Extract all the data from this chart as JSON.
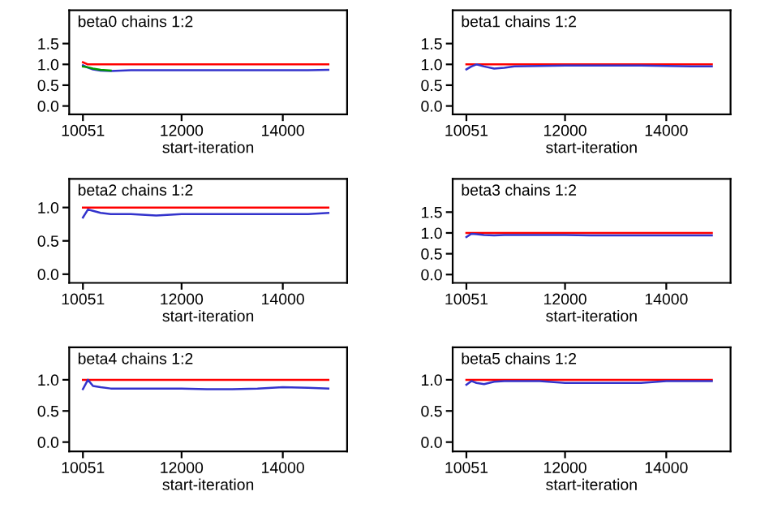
{
  "chart_data": [
    {
      "type": "line",
      "title": "beta0 chains 1:2",
      "xlabel": "start-iteration",
      "xlim": [
        9780,
        15270
      ],
      "xticks": [
        10051,
        12000,
        14000
      ],
      "ylim": [
        -0.2,
        2.3
      ],
      "yticks": [
        {
          "value": 0,
          "label": "0.0"
        },
        {
          "value": 0.5,
          "label": "0.5"
        },
        {
          "value": 1,
          "label": "1.0"
        },
        {
          "value": 1.5,
          "label": "1.5"
        }
      ],
      "grid": false,
      "x": [
        10051,
        10150,
        10250,
        10400,
        10600,
        10800,
        11000,
        11500,
        12000,
        12500,
        13000,
        13500,
        14000,
        14500,
        14900
      ],
      "series": [
        {
          "color": "#ff0000",
          "values": [
            1.05,
            1.0,
            1.0,
            1.0,
            1.0,
            1.0,
            1.0,
            1.0,
            1.0,
            1.0,
            1.0,
            1.0,
            1.0,
            1.0,
            1.0
          ]
        },
        {
          "color": "#3333cc",
          "values": [
            0.98,
            0.92,
            0.88,
            0.85,
            0.84,
            0.85,
            0.86,
            0.86,
            0.86,
            0.86,
            0.86,
            0.86,
            0.86,
            0.86,
            0.87
          ]
        },
        {
          "color": "#009900",
          "x": [
            10051,
            10150,
            10250,
            10400,
            10600
          ],
          "values": [
            0.95,
            0.93,
            0.9,
            0.87,
            0.85
          ]
        }
      ]
    },
    {
      "type": "line",
      "title": "beta1 chains 1:2",
      "xlabel": "start-iteration",
      "xlim": [
        9780,
        15270
      ],
      "xticks": [
        10051,
        12000,
        14000
      ],
      "ylim": [
        -0.2,
        2.3
      ],
      "yticks": [
        {
          "value": 0,
          "label": "0.0"
        },
        {
          "value": 0.5,
          "label": "0.5"
        },
        {
          "value": 1,
          "label": "1.0"
        },
        {
          "value": 1.5,
          "label": "1.5"
        }
      ],
      "grid": false,
      "x": [
        10051,
        10150,
        10250,
        10400,
        10600,
        10800,
        11000,
        11500,
        12000,
        12500,
        13000,
        13500,
        14000,
        14500,
        14900
      ],
      "series": [
        {
          "color": "#ff0000",
          "values": [
            1.0,
            1.0,
            1.0,
            1.0,
            1.0,
            1.0,
            1.0,
            1.0,
            1.0,
            1.0,
            1.0,
            1.0,
            1.0,
            1.0,
            1.0
          ]
        },
        {
          "color": "#3333cc",
          "values": [
            0.88,
            0.95,
            1.0,
            0.95,
            0.9,
            0.92,
            0.95,
            0.96,
            0.97,
            0.97,
            0.97,
            0.97,
            0.96,
            0.95,
            0.95
          ]
        }
      ]
    },
    {
      "type": "line",
      "title": "beta2 chains 1:2",
      "xlabel": "start-iteration",
      "xlim": [
        9780,
        15270
      ],
      "xticks": [
        10051,
        12000,
        14000
      ],
      "ylim": [
        -0.13,
        1.43
      ],
      "yticks": [
        {
          "value": 0,
          "label": "0.0"
        },
        {
          "value": 0.5,
          "label": "0.5"
        },
        {
          "value": 1,
          "label": "1.0"
        }
      ],
      "grid": false,
      "x": [
        10051,
        10150,
        10250,
        10400,
        10600,
        10800,
        11000,
        11500,
        12000,
        12500,
        13000,
        13500,
        14000,
        14500,
        14900
      ],
      "series": [
        {
          "color": "#ff0000",
          "values": [
            1.0,
            1.0,
            1.0,
            1.0,
            1.0,
            1.0,
            1.0,
            1.0,
            1.0,
            1.0,
            1.0,
            1.0,
            1.0,
            1.0,
            1.0
          ]
        },
        {
          "color": "#3333cc",
          "values": [
            0.85,
            0.97,
            0.95,
            0.92,
            0.9,
            0.9,
            0.9,
            0.88,
            0.9,
            0.9,
            0.9,
            0.9,
            0.9,
            0.9,
            0.92
          ]
        }
      ]
    },
    {
      "type": "line",
      "title": "beta3 chains 1:2",
      "xlabel": "start-iteration",
      "xlim": [
        9780,
        15270
      ],
      "xticks": [
        10051,
        12000,
        14000
      ],
      "ylim": [
        -0.2,
        2.3
      ],
      "yticks": [
        {
          "value": 0,
          "label": "0.0"
        },
        {
          "value": 0.5,
          "label": "0.5"
        },
        {
          "value": 1,
          "label": "1.0"
        },
        {
          "value": 1.5,
          "label": "1.5"
        }
      ],
      "grid": false,
      "x": [
        10051,
        10150,
        10250,
        10400,
        10600,
        10800,
        11000,
        11500,
        12000,
        12500,
        13000,
        13500,
        14000,
        14500,
        14900
      ],
      "series": [
        {
          "color": "#ff0000",
          "values": [
            1.0,
            1.0,
            1.0,
            1.0,
            1.0,
            1.0,
            1.0,
            1.0,
            1.0,
            1.0,
            1.0,
            1.0,
            1.0,
            1.0,
            1.0
          ]
        },
        {
          "color": "#3333cc",
          "values": [
            0.9,
            0.98,
            0.97,
            0.95,
            0.94,
            0.95,
            0.95,
            0.95,
            0.95,
            0.94,
            0.94,
            0.94,
            0.94,
            0.94,
            0.94
          ]
        }
      ]
    },
    {
      "type": "line",
      "title": "beta4 chains 1:2",
      "xlabel": "start-iteration",
      "xlim": [
        9780,
        15270
      ],
      "xticks": [
        10051,
        12000,
        14000
      ],
      "ylim": [
        -0.15,
        1.52
      ],
      "yticks": [
        {
          "value": 0,
          "label": "0.0"
        },
        {
          "value": 0.5,
          "label": "0.5"
        },
        {
          "value": 1,
          "label": "1.0"
        }
      ],
      "grid": false,
      "x": [
        10051,
        10150,
        10250,
        10400,
        10600,
        10800,
        11000,
        11500,
        12000,
        12500,
        13000,
        13500,
        14000,
        14500,
        14900
      ],
      "series": [
        {
          "color": "#ff0000",
          "values": [
            1.0,
            1.0,
            1.0,
            1.0,
            1.0,
            1.0,
            1.0,
            1.0,
            1.0,
            1.0,
            1.0,
            1.0,
            1.0,
            1.0,
            1.0
          ]
        },
        {
          "color": "#3333cc",
          "values": [
            0.85,
            1.0,
            0.9,
            0.88,
            0.86,
            0.86,
            0.86,
            0.86,
            0.86,
            0.85,
            0.85,
            0.86,
            0.88,
            0.87,
            0.86
          ]
        }
      ]
    },
    {
      "type": "line",
      "title": "beta5 chains 1:2",
      "xlabel": "start-iteration",
      "xlim": [
        9780,
        15270
      ],
      "xticks": [
        10051,
        12000,
        14000
      ],
      "ylim": [
        -0.15,
        1.52
      ],
      "yticks": [
        {
          "value": 0,
          "label": "0.0"
        },
        {
          "value": 0.5,
          "label": "0.5"
        },
        {
          "value": 1,
          "label": "1.0"
        }
      ],
      "grid": false,
      "x": [
        10051,
        10150,
        10250,
        10400,
        10600,
        10800,
        11000,
        11500,
        12000,
        12500,
        13000,
        13500,
        14000,
        14500,
        14900
      ],
      "series": [
        {
          "color": "#ff0000",
          "values": [
            1.0,
            1.0,
            1.0,
            1.0,
            1.0,
            1.0,
            1.0,
            1.0,
            1.0,
            1.0,
            1.0,
            1.0,
            1.0,
            1.0,
            1.0
          ]
        },
        {
          "color": "#3333cc",
          "values": [
            0.92,
            0.98,
            0.95,
            0.93,
            0.97,
            0.98,
            0.98,
            0.98,
            0.95,
            0.95,
            0.95,
            0.95,
            0.98,
            0.98,
            0.98
          ]
        }
      ]
    }
  ]
}
